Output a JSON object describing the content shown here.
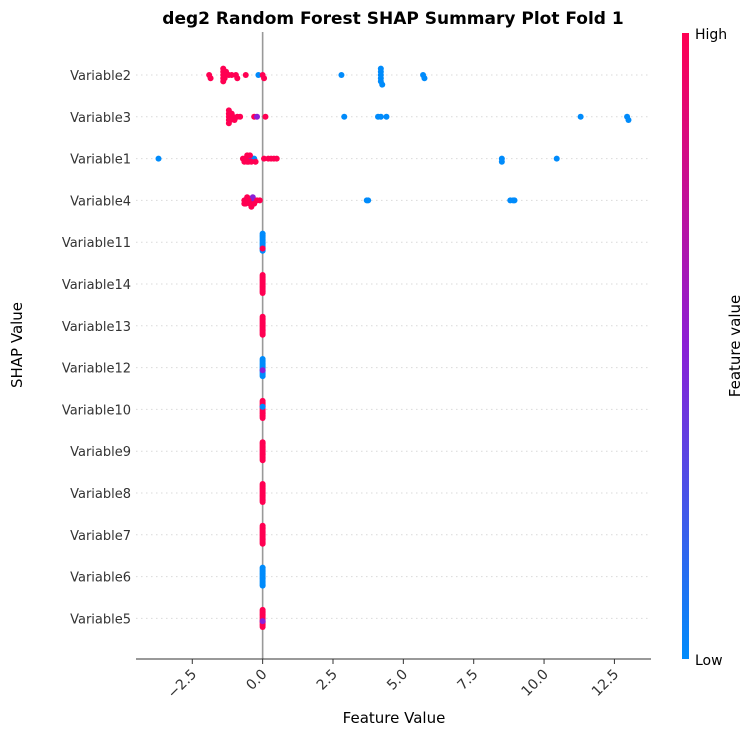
{
  "chart_data": {
    "type": "scatter",
    "title": "deg2 Random Forest SHAP Summary Plot Fold 1",
    "xlabel": "Feature Value",
    "ylabel": "SHAP Value",
    "xlim": [
      -4.5,
      13.8
    ],
    "x_ticks": [
      "−2.5",
      "0.0",
      "2.5",
      "5.0",
      "7.5",
      "10.0",
      "12.5"
    ],
    "x_tick_values": [
      -2.5,
      0.0,
      2.5,
      5.0,
      7.5,
      10.0,
      12.5
    ],
    "zero_line": 0,
    "grid": "horizontal dotted",
    "colorbar": {
      "title": "Feature value",
      "high_label": "High",
      "low_label": "Low",
      "high_color": "#ff0052",
      "mid_color": "#8b1fd6",
      "low_color": "#008bfb"
    },
    "categories": [
      "Variable2",
      "Variable3",
      "Variable1",
      "Variable4",
      "Variable11",
      "Variable14",
      "Variable13",
      "Variable12",
      "Variable10",
      "Variable9",
      "Variable8",
      "Variable7",
      "Variable6",
      "Variable5"
    ],
    "series": [
      {
        "category": "Variable2",
        "points": [
          {
            "x": -1.9,
            "v": "high"
          },
          {
            "x": -1.85,
            "v": "high"
          },
          {
            "x": -1.4,
            "v": "high"
          },
          {
            "x": -1.4,
            "v": "high"
          },
          {
            "x": -1.4,
            "v": "high"
          },
          {
            "x": -1.4,
            "v": "high"
          },
          {
            "x": -1.4,
            "v": "high"
          },
          {
            "x": -1.35,
            "v": "high"
          },
          {
            "x": -1.35,
            "v": "high"
          },
          {
            "x": -1.3,
            "v": "high"
          },
          {
            "x": -1.2,
            "v": "high"
          },
          {
            "x": -1.1,
            "v": "high"
          },
          {
            "x": -0.95,
            "v": "high"
          },
          {
            "x": -0.9,
            "v": "high"
          },
          {
            "x": -0.6,
            "v": "high"
          },
          {
            "x": -0.15,
            "v": "low"
          },
          {
            "x": 0.0,
            "v": "high"
          },
          {
            "x": 0.05,
            "v": "high"
          },
          {
            "x": 2.8,
            "v": "low"
          },
          {
            "x": 4.2,
            "v": "low"
          },
          {
            "x": 4.2,
            "v": "low"
          },
          {
            "x": 4.2,
            "v": "low"
          },
          {
            "x": 4.2,
            "v": "low"
          },
          {
            "x": 4.2,
            "v": "low"
          },
          {
            "x": 4.25,
            "v": "low"
          },
          {
            "x": 5.7,
            "v": "low"
          },
          {
            "x": 5.75,
            "v": "low"
          }
        ]
      },
      {
        "category": "Variable3",
        "points": [
          {
            "x": -1.2,
            "v": "high"
          },
          {
            "x": -1.2,
            "v": "high"
          },
          {
            "x": -1.2,
            "v": "high"
          },
          {
            "x": -1.2,
            "v": "high"
          },
          {
            "x": -1.2,
            "v": "high"
          },
          {
            "x": -1.15,
            "v": "high"
          },
          {
            "x": -1.15,
            "v": "high"
          },
          {
            "x": -1.1,
            "v": "high"
          },
          {
            "x": -1.05,
            "v": "high"
          },
          {
            "x": -1.0,
            "v": "high"
          },
          {
            "x": -0.9,
            "v": "high"
          },
          {
            "x": -0.8,
            "v": "high"
          },
          {
            "x": -0.3,
            "v": "high"
          },
          {
            "x": -0.2,
            "v": "mid"
          },
          {
            "x": 0.1,
            "v": "high"
          },
          {
            "x": 2.9,
            "v": "low"
          },
          {
            "x": 4.1,
            "v": "low"
          },
          {
            "x": 4.2,
            "v": "low"
          },
          {
            "x": 4.4,
            "v": "low"
          },
          {
            "x": 11.3,
            "v": "low"
          },
          {
            "x": 12.95,
            "v": "low"
          },
          {
            "x": 13.0,
            "v": "low"
          }
        ]
      },
      {
        "category": "Variable1",
        "points": [
          {
            "x": -3.7,
            "v": "low"
          },
          {
            "x": -0.35,
            "v": "low"
          },
          {
            "x": -0.3,
            "v": "low"
          },
          {
            "x": -0.5,
            "v": "mid"
          },
          {
            "x": -0.7,
            "v": "high"
          },
          {
            "x": -0.65,
            "v": "high"
          },
          {
            "x": -0.6,
            "v": "high"
          },
          {
            "x": -0.55,
            "v": "high"
          },
          {
            "x": -0.55,
            "v": "high"
          },
          {
            "x": -0.5,
            "v": "high"
          },
          {
            "x": -0.45,
            "v": "high"
          },
          {
            "x": -0.4,
            "v": "high"
          },
          {
            "x": -0.25,
            "v": "high"
          },
          {
            "x": 0.05,
            "v": "high"
          },
          {
            "x": 0.2,
            "v": "high"
          },
          {
            "x": 0.3,
            "v": "high"
          },
          {
            "x": 0.4,
            "v": "high"
          },
          {
            "x": 0.5,
            "v": "high"
          },
          {
            "x": 8.5,
            "v": "low"
          },
          {
            "x": 8.5,
            "v": "low"
          },
          {
            "x": 10.45,
            "v": "low"
          }
        ]
      },
      {
        "category": "Variable4",
        "points": [
          {
            "x": -0.35,
            "v": "mid"
          },
          {
            "x": -0.3,
            "v": "mid"
          },
          {
            "x": -0.35,
            "v": "mid"
          },
          {
            "x": -0.35,
            "v": "mid"
          },
          {
            "x": -0.65,
            "v": "high"
          },
          {
            "x": -0.65,
            "v": "high"
          },
          {
            "x": -0.6,
            "v": "high"
          },
          {
            "x": -0.6,
            "v": "high"
          },
          {
            "x": -0.55,
            "v": "high"
          },
          {
            "x": -0.5,
            "v": "high"
          },
          {
            "x": -0.45,
            "v": "high"
          },
          {
            "x": -0.4,
            "v": "high"
          },
          {
            "x": -0.3,
            "v": "high"
          },
          {
            "x": -0.2,
            "v": "high"
          },
          {
            "x": -0.1,
            "v": "high"
          },
          {
            "x": 3.7,
            "v": "low"
          },
          {
            "x": 3.75,
            "v": "low"
          },
          {
            "x": 8.8,
            "v": "low"
          },
          {
            "x": 8.9,
            "v": "low"
          },
          {
            "x": 8.95,
            "v": "low"
          }
        ]
      },
      {
        "category": "Variable11",
        "points": [
          {
            "x": 0.0,
            "v": "low",
            "n": 13,
            "pos": 0.95
          },
          {
            "x": 0.0,
            "v": "high",
            "n": 1,
            "pos": 0.7
          }
        ]
      },
      {
        "category": "Variable14",
        "points": [
          {
            "x": 0.0,
            "v": "high",
            "n": 14
          }
        ]
      },
      {
        "category": "Variable13",
        "points": [
          {
            "x": 0.0,
            "v": "high",
            "n": 14
          }
        ]
      },
      {
        "category": "Variable12",
        "points": [
          {
            "x": 0.0,
            "v": "low",
            "n": 13,
            "pos": 0.95
          },
          {
            "x": 0.0,
            "v": "mid",
            "n": 1,
            "pos": 0.3
          }
        ]
      },
      {
        "category": "Variable10",
        "points": [
          {
            "x": 0.0,
            "v": "high",
            "n": 13,
            "pos": 0.95
          },
          {
            "x": 0.0,
            "v": "low",
            "n": 1,
            "pos": -0.3
          }
        ]
      },
      {
        "category": "Variable9",
        "points": [
          {
            "x": 0.0,
            "v": "high",
            "n": 14
          }
        ]
      },
      {
        "category": "Variable8",
        "points": [
          {
            "x": 0.0,
            "v": "high",
            "n": 14
          }
        ]
      },
      {
        "category": "Variable7",
        "points": [
          {
            "x": 0.0,
            "v": "high",
            "n": 14
          }
        ]
      },
      {
        "category": "Variable6",
        "points": [
          {
            "x": 0.0,
            "v": "low",
            "n": 14
          }
        ]
      },
      {
        "category": "Variable5",
        "points": [
          {
            "x": 0.0,
            "v": "high",
            "n": 13,
            "pos": 0.95
          },
          {
            "x": 0.0,
            "v": "mid",
            "n": 1,
            "pos": 0.3
          }
        ]
      }
    ]
  }
}
